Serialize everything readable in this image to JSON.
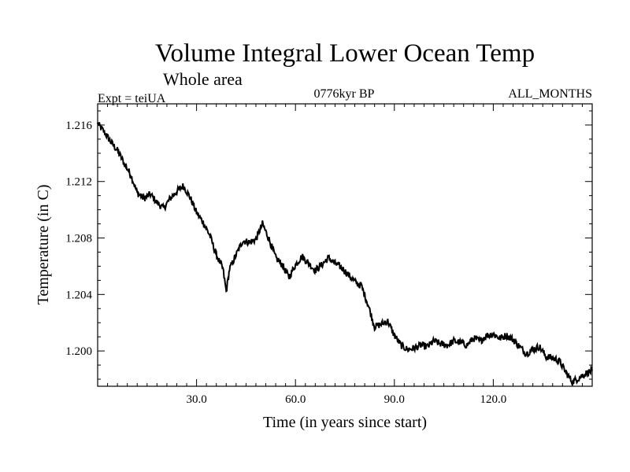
{
  "chart_data": {
    "type": "line",
    "title": "Volume Integral Lower Ocean Temp",
    "subtitle": "Whole area",
    "experiment_label": "Expt = teiUA",
    "period_label": "0776kyr BP",
    "months_label": "ALL_MONTHS",
    "xlabel": "Time (in years since start)",
    "ylabel": "Temperature (in C)",
    "xlim": [
      0,
      150
    ],
    "ylim": [
      1.1975,
      1.2175
    ],
    "x_ticks": [
      30,
      60,
      90,
      120
    ],
    "x_tick_labels": [
      "30.0",
      "60.0",
      "90.0",
      "120.0"
    ],
    "y_ticks": [
      1.2,
      1.204,
      1.208,
      1.212,
      1.216
    ],
    "y_tick_labels": [
      "1.200",
      "1.204",
      "1.208",
      "1.212",
      "1.216"
    ],
    "series": [
      {
        "name": "temperature",
        "color": "#000000",
        "x": [
          0,
          2,
          4,
          6,
          8,
          10,
          12,
          14,
          16,
          18,
          20,
          22,
          24,
          26,
          28,
          30,
          32,
          34,
          36,
          38,
          39,
          40,
          42,
          44,
          46,
          48,
          50,
          52,
          54,
          56,
          58,
          60,
          62,
          64,
          66,
          68,
          70,
          72,
          74,
          76,
          78,
          80,
          82,
          84,
          86,
          88,
          90,
          92,
          94,
          96,
          98,
          100,
          102,
          104,
          106,
          108,
          110,
          112,
          114,
          116,
          118,
          120,
          122,
          124,
          126,
          128,
          130,
          132,
          134,
          136,
          138,
          140,
          142,
          144,
          146,
          148,
          150
        ],
        "values": [
          1.2161,
          1.2155,
          1.2148,
          1.2142,
          1.2133,
          1.2125,
          1.2112,
          1.2108,
          1.2111,
          1.2105,
          1.2101,
          1.2108,
          1.2113,
          1.2117,
          1.2109,
          1.2098,
          1.2091,
          1.2082,
          1.2068,
          1.2058,
          1.2042,
          1.2058,
          1.2068,
          1.2078,
          1.2077,
          1.2079,
          1.209,
          1.2079,
          1.2066,
          1.2061,
          1.2052,
          1.2061,
          1.2067,
          1.2062,
          1.2057,
          1.2061,
          1.2066,
          1.2062,
          1.2059,
          1.2054,
          1.2049,
          1.2046,
          1.2033,
          1.2017,
          1.2019,
          1.2021,
          1.2011,
          1.2004,
          1.2001,
          1.2002,
          1.2004,
          1.2003,
          1.2007,
          1.2005,
          1.2004,
          1.2007,
          1.2006,
          1.2004,
          1.2009,
          1.2007,
          1.2011,
          1.2012,
          1.2009,
          1.2011,
          1.2008,
          1.2003,
          1.1998,
          1.2001,
          1.2003,
          1.1996,
          1.1995,
          1.1993,
          1.1985,
          1.1978,
          1.1981,
          1.1984,
          1.1986
        ]
      }
    ]
  }
}
